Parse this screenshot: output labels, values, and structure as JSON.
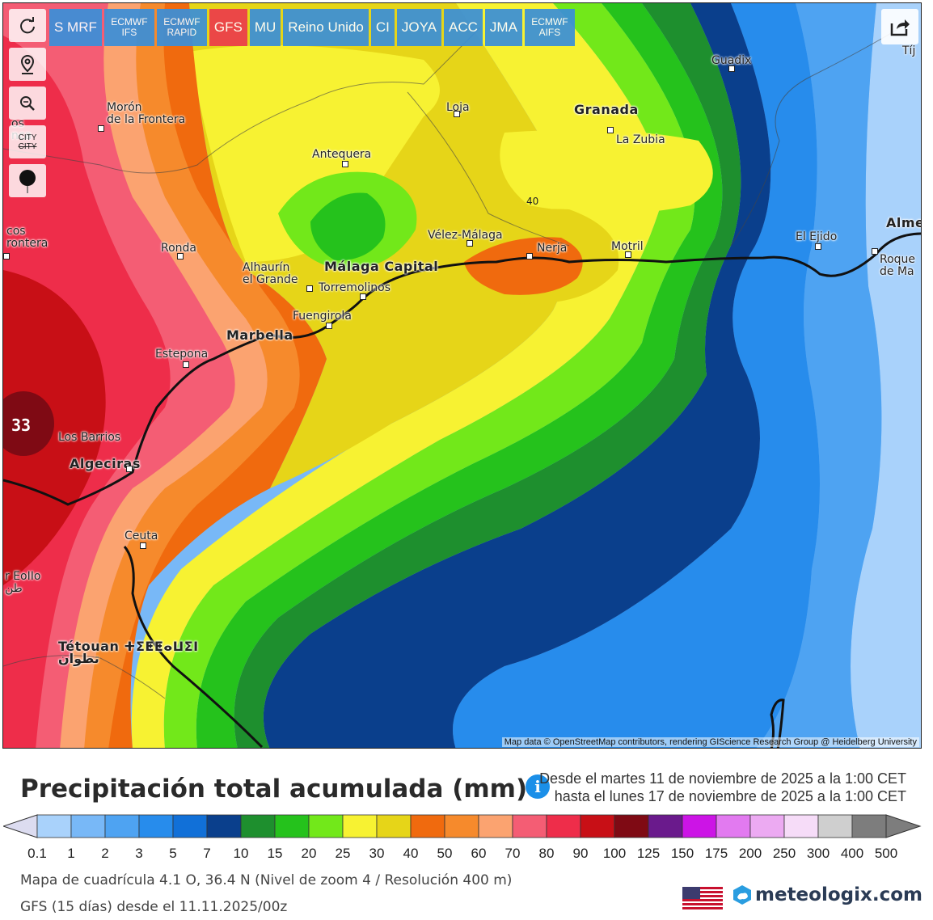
{
  "toolbar": {
    "models": [
      {
        "label": "S MRF",
        "style": "normal",
        "active": false
      },
      {
        "label": "ECMWF IFS",
        "style": "small",
        "active": false
      },
      {
        "label": "ECMWF RAPID",
        "style": "small",
        "active": false
      },
      {
        "label": "GFS",
        "style": "normal",
        "active": true
      },
      {
        "label": "MU",
        "style": "normal",
        "active": false
      },
      {
        "label": "Reino Unido",
        "style": "normal",
        "active": false
      },
      {
        "label": "CI",
        "style": "normal",
        "active": false
      },
      {
        "label": "JOYA",
        "style": "normal",
        "active": false
      },
      {
        "label": "ACC",
        "style": "normal",
        "active": false
      },
      {
        "label": "JMA",
        "style": "normal",
        "active": false
      },
      {
        "label": "ECMWF AIFS",
        "style": "small",
        "active": false
      }
    ],
    "tools": [
      {
        "name": "refresh-icon"
      },
      {
        "name": "location-pin-icon"
      },
      {
        "name": "zoom-icon"
      },
      {
        "name": "city-toggle",
        "label_top": "CITY",
        "label_bottom": "CITY"
      },
      {
        "name": "marker-icon"
      }
    ],
    "share_icon": "share-icon"
  },
  "map": {
    "places": [
      {
        "name": "Morón de la Frontera",
        "lines": [
          "Morón",
          "de la Frontera"
        ],
        "big": false
      },
      {
        "name": "Antequera",
        "lines": [
          "Antequera"
        ],
        "big": false
      },
      {
        "name": "Loja",
        "lines": [
          "Loja"
        ],
        "big": false
      },
      {
        "name": "Granada",
        "lines": [
          "Granada"
        ],
        "big": true
      },
      {
        "name": "La Zubia",
        "lines": [
          "La Zubia"
        ],
        "big": false
      },
      {
        "name": "Guadix",
        "lines": [
          "Guadix"
        ],
        "big": false
      },
      {
        "name": "Ronda",
        "lines": [
          "Ronda"
        ],
        "big": false
      },
      {
        "name": "Vélez-Málaga",
        "lines": [
          "Vélez-Málaga"
        ],
        "big": false
      },
      {
        "name": "Nerja",
        "lines": [
          "Nerja"
        ],
        "big": false
      },
      {
        "name": "Motril",
        "lines": [
          "Motril"
        ],
        "big": false
      },
      {
        "name": "El Ejido",
        "lines": [
          "El Ejido"
        ],
        "big": false
      },
      {
        "name": "Alhaurín el Grande",
        "lines": [
          "Alhaurín",
          "el Grande"
        ],
        "big": false
      },
      {
        "name": "Málaga Capital",
        "lines": [
          "Málaga Capital"
        ],
        "big": true
      },
      {
        "name": "Torremolinos",
        "lines": [
          "Torremolinos"
        ],
        "big": false
      },
      {
        "name": "Fuengirola",
        "lines": [
          "Fuengirola"
        ],
        "big": false
      },
      {
        "name": "Marbella",
        "lines": [
          "Marbella"
        ],
        "big": true
      },
      {
        "name": "Estepona",
        "lines": [
          "Estepona"
        ],
        "big": false
      },
      {
        "name": "Los Barrios",
        "lines": [
          "Los Barrios"
        ],
        "big": false
      },
      {
        "name": "Algeciras",
        "lines": [
          "Algeciras"
        ],
        "big": true
      },
      {
        "name": "Ceuta",
        "lines": [
          "Ceuta"
        ],
        "big": false
      },
      {
        "name": "Tétouan",
        "lines": [
          "Tétouan ⵜⵉⵟⵟⴰⵡⵉⵏ",
          "تطوان"
        ],
        "big": true
      },
      {
        "name": "Roquetas de Mar",
        "lines": [
          "Roque",
          "de Ma"
        ],
        "big": false
      },
      {
        "name": "Almería",
        "lines": [
          "Alme"
        ],
        "big": true
      },
      {
        "name": "Tíjola",
        "lines": [
          "Tíj"
        ],
        "big": false
      },
      {
        "name": "Frontera (left edge)",
        "lines": [
          "cos",
          "rontera"
        ],
        "big": false
      },
      {
        "name": "Utrera edge",
        "lines": [
          "os",
          "nca"
        ],
        "big": false
      },
      {
        "name": "Fnideq",
        "lines": [
          "r EoIIo",
          "طن"
        ],
        "big": false
      }
    ],
    "max_value_label": "33",
    "contour_label": "40",
    "attribution": "Map data © OpenStreetMap contributors, rendering GIScience Research Group @ Heidelberg University"
  },
  "legend": {
    "title": "Precipitación total acumulada (mm)",
    "info_icon": "i",
    "date_from": "Desde el martes 11 de noviembre de 2025 a  la 1:00 CET",
    "date_to": "hasta el lunes 17 de noviembre de 2025 a  la 1:00 CET",
    "scale": [
      {
        "label": "0.1",
        "color": "#dcdcf0"
      },
      {
        "label": "1",
        "color": "#a9d2fb"
      },
      {
        "label": "2",
        "color": "#78b8f7"
      },
      {
        "label": "3",
        "color": "#4ea3f2"
      },
      {
        "label": "5",
        "color": "#278cec"
      },
      {
        "label": "7",
        "color": "#1170d8"
      },
      {
        "label": "10",
        "color": "#0a3f8c"
      },
      {
        "label": "15",
        "color": "#1e8f2e"
      },
      {
        "label": "20",
        "color": "#25c21c"
      },
      {
        "label": "25",
        "color": "#72e81a"
      },
      {
        "label": "30",
        "color": "#f7f232"
      },
      {
        "label": "40",
        "color": "#e6d518"
      },
      {
        "label": "50",
        "color": "#f06a0e"
      },
      {
        "label": "60",
        "color": "#f68a2c"
      },
      {
        "label": "70",
        "color": "#fba370"
      },
      {
        "label": "80",
        "color": "#f45d74"
      },
      {
        "label": "90",
        "color": "#ee2d4a"
      },
      {
        "label": "100",
        "color": "#c80f16"
      },
      {
        "label": "125",
        "color": "#7f0a14"
      },
      {
        "label": "150",
        "color": "#6a1a8c"
      },
      {
        "label": "175",
        "color": "#cc14e6"
      },
      {
        "label": "200",
        "color": "#e27af0"
      },
      {
        "label": "250",
        "color": "#ecaaf2"
      },
      {
        "label": "300",
        "color": "#f6dcf8"
      },
      {
        "label": "400",
        "color": "#cfcfcf"
      },
      {
        "label": "500",
        "color": "#7d7d7d"
      }
    ],
    "grid_info": "Mapa de cuadrícula 4.1 O, 36.4 N (Nivel de zoom 4 / Resolución 400 m)",
    "run_info": "GFS (15 días) desde el 11.11.2025/00z",
    "brand": "meteologix.com"
  }
}
